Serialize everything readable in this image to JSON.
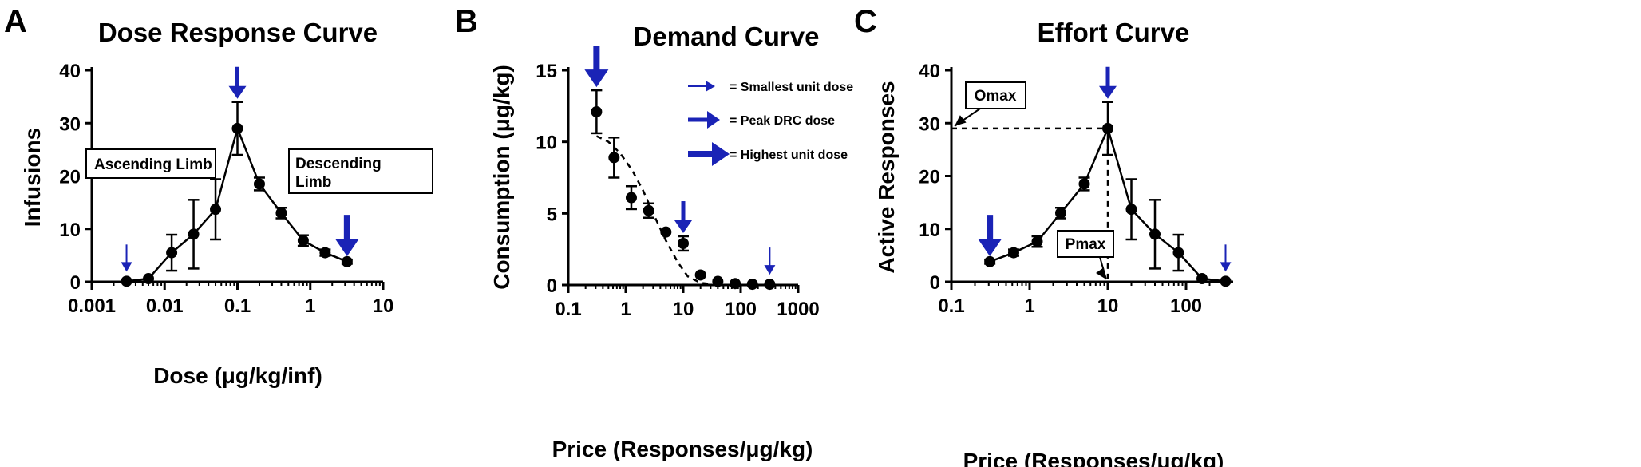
{
  "colors": {
    "arrow": "#1a23b6",
    "line": "#000000"
  },
  "chart_data": [
    {
      "panel": "A",
      "type": "line",
      "title": "Dose Response Curve",
      "xlabel": "Dose (μg/kg/inf)",
      "ylabel": "Infusions",
      "xscale": "log",
      "xlim": [
        0.001,
        10
      ],
      "ylim": [
        0,
        40
      ],
      "xticks": [
        "0.001",
        "0.01",
        "0.1",
        "1",
        "10"
      ],
      "yticks": [
        "0",
        "10",
        "20",
        "30",
        "40"
      ],
      "series": [
        {
          "x": [
            0.003,
            0.006,
            0.0125,
            0.025,
            0.05,
            0.1,
            0.2,
            0.4,
            0.8,
            1.6,
            3.2
          ],
          "y": [
            0.1,
            0.6,
            5.5,
            9.0,
            13.7,
            29.0,
            18.5,
            13.0,
            7.8,
            5.5,
            3.8
          ],
          "err": [
            0,
            0,
            3.4,
            6.5,
            5.7,
            5.0,
            1.2,
            1.0,
            1.0,
            0.6,
            0.4
          ]
        }
      ],
      "annotations": [
        {
          "text": "Ascending Limb"
        },
        {
          "text": "Descending Limb",
          "lines": [
            "Descending",
            "Limb"
          ]
        }
      ],
      "arrows": [
        {
          "x": 0.003,
          "y": 0.1,
          "size": "small"
        },
        {
          "x": 0.1,
          "y": 29.0,
          "size": "medium"
        },
        {
          "x": 3.2,
          "y": 3.8,
          "size": "large"
        }
      ]
    },
    {
      "panel": "B",
      "type": "scatter",
      "title": "Demand Curve",
      "xlabel": "Price (Responses/μg/kg)",
      "ylabel": "Consumption (μg/kg)",
      "xscale": "log",
      "xlim": [
        0.1,
        1000
      ],
      "ylim": [
        0,
        15
      ],
      "xticks": [
        "0.1",
        "1",
        "10",
        "100",
        "1000"
      ],
      "yticks": [
        "0",
        "5",
        "10",
        "15"
      ],
      "series": [
        {
          "x": [
            0.31,
            0.625,
            1.25,
            2.5,
            5,
            10,
            20,
            40,
            80,
            160,
            320
          ],
          "y": [
            12.1,
            8.9,
            6.1,
            5.2,
            3.7,
            2.9,
            0.7,
            0.25,
            0.1,
            0.05,
            0.05
          ],
          "err": [
            1.5,
            1.4,
            0.8,
            0.5,
            0,
            0.5,
            0,
            0,
            0,
            0,
            0
          ]
        }
      ],
      "fit": {
        "x": [
          0.31,
          0.5,
          0.8,
          1.3,
          2,
          3,
          5,
          8,
          12,
          20,
          40,
          100,
          320
        ],
        "y": [
          10.4,
          10.0,
          9.2,
          8.0,
          6.6,
          5.0,
          3.1,
          1.6,
          0.6,
          0.15,
          0.02,
          0.0,
          0.0
        ]
      },
      "arrows": [
        {
          "x": 0.31,
          "y": 12.1,
          "size": "large"
        },
        {
          "x": 10,
          "y": 2.9,
          "size": "medium"
        },
        {
          "x": 320,
          "y": 0.05,
          "size": "small"
        }
      ],
      "legend": [
        {
          "size": "small",
          "text": "= Smallest unit dose"
        },
        {
          "size": "medium",
          "text": "= Peak DRC dose"
        },
        {
          "size": "large",
          "text": "= Highest unit dose"
        }
      ]
    },
    {
      "panel": "C",
      "type": "line",
      "title": "Effort Curve",
      "xlabel": "Price (Responses/μg/kg)",
      "ylabel": "Active  Responses",
      "xscale": "log",
      "xlim": [
        0.1,
        400
      ],
      "ylim": [
        0,
        40
      ],
      "xticks": [
        "0.1",
        "1",
        "10",
        "100"
      ],
      "yticks": [
        "0",
        "10",
        "20",
        "30",
        "40"
      ],
      "series": [
        {
          "x": [
            0.31,
            0.625,
            1.25,
            2.5,
            5,
            10,
            20,
            40,
            80,
            160,
            320
          ],
          "y": [
            3.8,
            5.5,
            7.6,
            13.0,
            18.5,
            29.0,
            13.7,
            9.0,
            5.5,
            0.6,
            0.1
          ],
          "err": [
            0.4,
            0.6,
            1.0,
            1.0,
            1.2,
            5.0,
            5.7,
            6.5,
            3.4,
            0,
            0
          ]
        }
      ],
      "annotations": [
        {
          "text": "Omax"
        },
        {
          "text": "Pmax"
        }
      ],
      "arrows": [
        {
          "x": 0.31,
          "y": 3.8,
          "size": "large"
        },
        {
          "x": 10,
          "y": 29.0,
          "size": "medium"
        },
        {
          "x": 320,
          "y": 0.1,
          "size": "small"
        }
      ]
    }
  ]
}
